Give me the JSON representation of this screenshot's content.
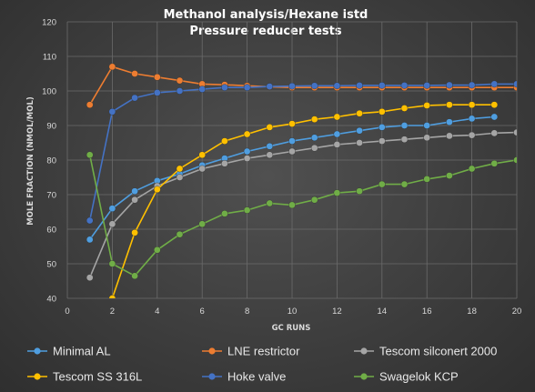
{
  "chart_data": {
    "type": "line",
    "title": "Methanol analysis/Hexane istd",
    "subtitle": "Pressure reducer tests",
    "xlabel": "GC RUNS",
    "ylabel": "MOLE FRACTION (NMOL/MOL)",
    "xlim": [
      0,
      20
    ],
    "ylim": [
      40,
      120
    ],
    "xticks": [
      0,
      2,
      4,
      6,
      8,
      10,
      12,
      14,
      16,
      18,
      20
    ],
    "yticks": [
      40,
      50,
      60,
      70,
      80,
      90,
      100,
      110,
      120
    ],
    "grid": true,
    "legend_position": "bottom",
    "series": [
      {
        "name": "Minimal AL",
        "color": "#4f9ee0",
        "x": [
          1,
          2,
          3,
          4,
          5,
          6,
          7,
          8,
          9,
          10,
          11,
          12,
          13,
          14,
          15,
          16,
          17,
          18,
          19
        ],
        "y": [
          57,
          66,
          71,
          74,
          76,
          78.5,
          80.5,
          82.5,
          84,
          85.5,
          86.5,
          87.5,
          88.5,
          89.5,
          90,
          90,
          91,
          92,
          92.5
        ]
      },
      {
        "name": "LNE restrictor",
        "color": "#ed7d31",
        "x": [
          1,
          2,
          3,
          4,
          5,
          6,
          7,
          8,
          9,
          10,
          11,
          12,
          13,
          14,
          15,
          16,
          17,
          18,
          19,
          20
        ],
        "y": [
          96,
          107,
          105,
          104,
          103,
          102,
          101.8,
          101.5,
          101.2,
          101,
          101,
          101,
          101,
          101,
          101,
          101,
          101,
          101,
          101,
          101
        ]
      },
      {
        "name": "Tescom silconert 2000",
        "color": "#a5a5a5",
        "x": [
          1,
          2,
          3,
          4,
          5,
          6,
          7,
          8,
          9,
          10,
          11,
          12,
          13,
          14,
          15,
          16,
          17,
          18,
          19,
          20
        ],
        "y": [
          46,
          61.5,
          68.5,
          72.5,
          75,
          77.5,
          79,
          80.5,
          81.5,
          82.5,
          83.5,
          84.5,
          85,
          85.5,
          86,
          86.5,
          87,
          87.2,
          87.8,
          88
        ]
      },
      {
        "name": "Tescom SS 316L",
        "color": "#ffc000",
        "x": [
          2,
          3,
          4,
          5,
          6,
          7,
          8,
          9,
          10,
          11,
          12,
          13,
          14,
          15,
          16,
          17,
          18,
          19
        ],
        "y": [
          40,
          59,
          71.5,
          77.5,
          81.5,
          85.5,
          87.5,
          89.5,
          90.5,
          91.8,
          92.5,
          93.5,
          94,
          95,
          95.8,
          96,
          96,
          96
        ]
      },
      {
        "name": "Hoke valve",
        "color": "#4472c4",
        "x": [
          1,
          2,
          3,
          4,
          5,
          6,
          7,
          8,
          9,
          10,
          11,
          12,
          13,
          14,
          15,
          16,
          17,
          18,
          19,
          20
        ],
        "y": [
          62.5,
          94,
          98,
          99.5,
          100,
          100.5,
          101,
          101,
          101.3,
          101.4,
          101.5,
          101.5,
          101.6,
          101.6,
          101.6,
          101.6,
          101.7,
          101.7,
          102,
          102
        ]
      },
      {
        "name": "Swagelok KCP",
        "color": "#70ad47",
        "x": [
          1,
          2,
          3,
          4,
          5,
          6,
          7,
          8,
          9,
          10,
          11,
          12,
          13,
          14,
          15,
          16,
          17,
          18,
          19,
          20
        ],
        "y": [
          81.5,
          50,
          46.5,
          54,
          58.5,
          61.5,
          64.5,
          65.5,
          67.5,
          67,
          68.5,
          70.5,
          71,
          73,
          73,
          74.5,
          75.5,
          77.5,
          79,
          80
        ]
      }
    ]
  }
}
